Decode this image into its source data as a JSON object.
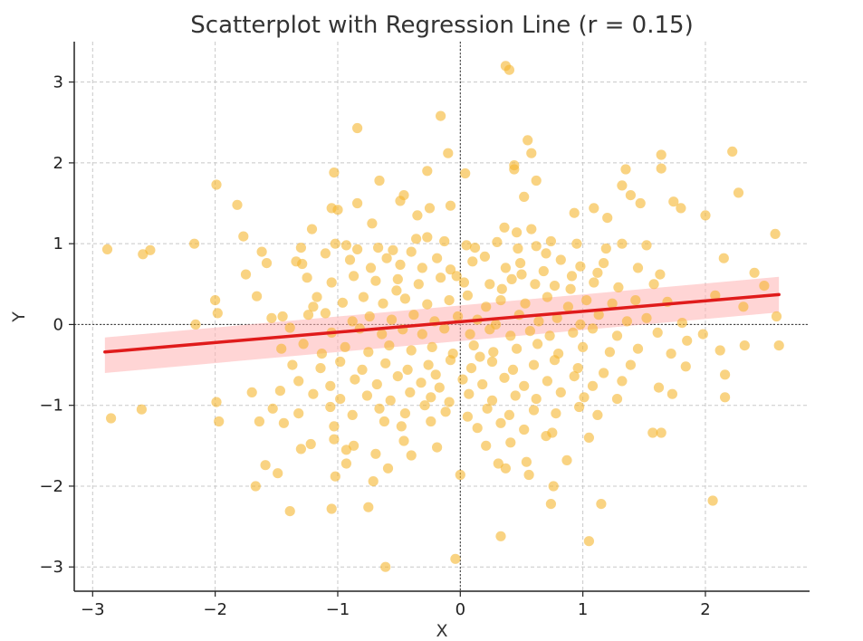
{
  "chart_data": {
    "type": "scatter",
    "title": "Scatterplot with Regression Line (r = 0.15)",
    "xlabel": "X",
    "ylabel": "Y",
    "xlim": [
      -3.15,
      2.85
    ],
    "ylim": [
      -3.3,
      3.5
    ],
    "xticks": [
      -3,
      -2,
      -1,
      0,
      1,
      2
    ],
    "yticks": [
      -3,
      -2,
      -1,
      0,
      1,
      2,
      3
    ],
    "xtick_labels": [
      "−3",
      "−2",
      "−1",
      "0",
      "1",
      "2"
    ],
    "ytick_labels": [
      "−3",
      "−2",
      "−1",
      "0",
      "1",
      "2",
      "3"
    ],
    "grid": true,
    "zero_lines": true,
    "point_color": "#f5b52e",
    "line_color": "#e01b1b",
    "band_color": "#ffb3b3",
    "regression": {
      "x": [
        -2.9,
        2.6
      ],
      "y": [
        -0.34,
        0.37
      ],
      "band_upper": [
        -0.16,
        0.59
      ],
      "band_lower": [
        -0.6,
        0.15
      ]
    },
    "points": [
      [
        0.37,
        3.2
      ],
      [
        0.4,
        3.15
      ],
      [
        -0.16,
        2.58
      ],
      [
        -0.84,
        2.43
      ],
      [
        -0.1,
        2.12
      ],
      [
        0.55,
        2.28
      ],
      [
        0.58,
        2.12
      ],
      [
        1.64,
        2.1
      ],
      [
        1.64,
        1.93
      ],
      [
        2.22,
        2.14
      ],
      [
        0.44,
        1.97
      ],
      [
        0.44,
        1.92
      ],
      [
        -0.27,
        1.9
      ],
      [
        0.04,
        1.87
      ],
      [
        -1.99,
        1.73
      ],
      [
        -1.03,
        1.88
      ],
      [
        1.35,
        1.92
      ],
      [
        1.32,
        1.72
      ],
      [
        2.27,
        1.63
      ],
      [
        -0.66,
        1.78
      ],
      [
        -0.46,
        1.6
      ],
      [
        -0.25,
        1.44
      ],
      [
        0.62,
        1.78
      ],
      [
        1.39,
        1.6
      ],
      [
        1.74,
        1.52
      ],
      [
        -1.82,
        1.48
      ],
      [
        -1.0,
        1.42
      ],
      [
        -0.84,
        1.5
      ],
      [
        -0.49,
        1.53
      ],
      [
        -0.08,
        1.47
      ],
      [
        0.52,
        1.58
      ],
      [
        1.09,
        1.44
      ],
      [
        1.47,
        1.5
      ],
      [
        1.8,
        1.44
      ],
      [
        2.0,
        1.35
      ],
      [
        -1.21,
        1.18
      ],
      [
        -1.05,
        1.44
      ],
      [
        -0.72,
        1.25
      ],
      [
        -0.35,
        1.35
      ],
      [
        0.36,
        1.2
      ],
      [
        0.46,
        1.14
      ],
      [
        0.58,
        1.18
      ],
      [
        0.93,
        1.38
      ],
      [
        1.2,
        1.32
      ],
      [
        -1.77,
        1.09
      ],
      [
        -2.17,
        1.0
      ],
      [
        -1.62,
        0.9
      ],
      [
        -2.88,
        0.93
      ],
      [
        -2.53,
        0.92
      ],
      [
        -2.59,
        0.87
      ],
      [
        -1.3,
        0.95
      ],
      [
        -1.1,
        0.88
      ],
      [
        -1.02,
        1.0
      ],
      [
        -0.93,
        0.98
      ],
      [
        -0.84,
        0.93
      ],
      [
        -0.67,
        0.95
      ],
      [
        -0.55,
        0.92
      ],
      [
        -0.36,
        1.06
      ],
      [
        -0.27,
        1.08
      ],
      [
        -0.13,
        1.03
      ],
      [
        0.05,
        0.98
      ],
      [
        0.12,
        0.95
      ],
      [
        0.3,
        1.02
      ],
      [
        0.47,
        0.94
      ],
      [
        0.62,
        0.97
      ],
      [
        0.74,
        1.03
      ],
      [
        0.95,
        1.0
      ],
      [
        1.19,
        0.94
      ],
      [
        1.32,
        1.0
      ],
      [
        1.52,
        0.98
      ],
      [
        2.57,
        1.12
      ],
      [
        -1.58,
        0.76
      ],
      [
        -1.34,
        0.78
      ],
      [
        -1.29,
        0.75
      ],
      [
        -0.9,
        0.8
      ],
      [
        -0.73,
        0.7
      ],
      [
        -0.6,
        0.82
      ],
      [
        -0.49,
        0.74
      ],
      [
        -0.31,
        0.7
      ],
      [
        -0.19,
        0.82
      ],
      [
        -0.08,
        0.68
      ],
      [
        0.1,
        0.78
      ],
      [
        0.2,
        0.84
      ],
      [
        0.37,
        0.7
      ],
      [
        0.49,
        0.76
      ],
      [
        0.68,
        0.66
      ],
      [
        0.82,
        0.8
      ],
      [
        0.98,
        0.72
      ],
      [
        1.17,
        0.76
      ],
      [
        1.45,
        0.7
      ],
      [
        1.63,
        0.62
      ],
      [
        2.15,
        0.82
      ],
      [
        2.4,
        0.64
      ],
      [
        -1.75,
        0.62
      ],
      [
        -1.25,
        0.58
      ],
      [
        -1.05,
        0.52
      ],
      [
        -0.87,
        0.6
      ],
      [
        -0.69,
        0.54
      ],
      [
        -0.51,
        0.56
      ],
      [
        -0.34,
        0.5
      ],
      [
        -0.16,
        0.58
      ],
      [
        0.03,
        0.52
      ],
      [
        0.24,
        0.5
      ],
      [
        0.42,
        0.56
      ],
      [
        0.61,
        0.5
      ],
      [
        0.77,
        0.48
      ],
      [
        0.91,
        0.6
      ],
      [
        1.09,
        0.52
      ],
      [
        1.29,
        0.46
      ],
      [
        1.58,
        0.5
      ],
      [
        2.48,
        0.48
      ],
      [
        -2.0,
        0.3
      ],
      [
        -1.66,
        0.35
      ],
      [
        -1.17,
        0.34
      ],
      [
        -1.2,
        0.22
      ],
      [
        -0.96,
        0.27
      ],
      [
        -0.79,
        0.34
      ],
      [
        -0.63,
        0.26
      ],
      [
        -0.45,
        0.32
      ],
      [
        -0.27,
        0.25
      ],
      [
        -0.09,
        0.3
      ],
      [
        0.06,
        0.36
      ],
      [
        0.21,
        0.22
      ],
      [
        0.33,
        0.3
      ],
      [
        0.53,
        0.26
      ],
      [
        0.71,
        0.34
      ],
      [
        0.88,
        0.22
      ],
      [
        1.03,
        0.3
      ],
      [
        1.24,
        0.26
      ],
      [
        1.43,
        0.3
      ],
      [
        1.69,
        0.28
      ],
      [
        2.08,
        0.36
      ],
      [
        2.31,
        0.22
      ],
      [
        2.58,
        0.1
      ],
      [
        -1.54,
        0.08
      ],
      [
        -1.24,
        0.12
      ],
      [
        -1.1,
        0.14
      ],
      [
        -0.88,
        0.04
      ],
      [
        -0.74,
        0.1
      ],
      [
        -0.56,
        0.06
      ],
      [
        -0.38,
        0.12
      ],
      [
        -0.21,
        0.04
      ],
      [
        -0.02,
        0.1
      ],
      [
        0.14,
        0.06
      ],
      [
        0.29,
        0.0
      ],
      [
        0.48,
        0.12
      ],
      [
        0.64,
        0.04
      ],
      [
        0.79,
        0.08
      ],
      [
        0.98,
        0.0
      ],
      [
        1.13,
        0.12
      ],
      [
        1.36,
        0.04
      ],
      [
        1.52,
        0.08
      ],
      [
        1.81,
        0.02
      ],
      [
        -2.16,
        0.0
      ],
      [
        -1.98,
        0.14
      ],
      [
        -1.39,
        -0.04
      ],
      [
        -1.05,
        -0.1
      ],
      [
        -0.82,
        -0.05
      ],
      [
        -0.64,
        -0.12
      ],
      [
        -0.47,
        -0.06
      ],
      [
        -0.31,
        -0.12
      ],
      [
        -0.13,
        -0.05
      ],
      [
        0.08,
        -0.12
      ],
      [
        0.24,
        -0.06
      ],
      [
        0.41,
        -0.14
      ],
      [
        0.57,
        -0.08
      ],
      [
        0.73,
        -0.14
      ],
      [
        0.92,
        -0.1
      ],
      [
        1.08,
        -0.05
      ],
      [
        1.28,
        -0.14
      ],
      [
        1.61,
        -0.1
      ],
      [
        1.98,
        -0.12
      ],
      [
        2.6,
        -0.26
      ],
      [
        -1.46,
        -0.3
      ],
      [
        -1.28,
        -0.24
      ],
      [
        -1.13,
        -0.36
      ],
      [
        -0.94,
        -0.28
      ],
      [
        -0.75,
        -0.34
      ],
      [
        -0.58,
        -0.26
      ],
      [
        -0.4,
        -0.32
      ],
      [
        -0.23,
        -0.28
      ],
      [
        -0.06,
        -0.36
      ],
      [
        0.11,
        -0.26
      ],
      [
        0.27,
        -0.34
      ],
      [
        0.46,
        -0.3
      ],
      [
        0.63,
        -0.24
      ],
      [
        0.8,
        -0.36
      ],
      [
        1.0,
        -0.28
      ],
      [
        1.22,
        -0.34
      ],
      [
        1.45,
        -0.3
      ],
      [
        1.72,
        -0.36
      ],
      [
        2.12,
        -0.32
      ],
      [
        2.32,
        -0.26
      ],
      [
        -1.37,
        -0.5
      ],
      [
        -1.14,
        -0.54
      ],
      [
        -0.98,
        -0.46
      ],
      [
        -0.8,
        -0.56
      ],
      [
        -0.61,
        -0.48
      ],
      [
        -0.43,
        -0.56
      ],
      [
        -0.26,
        -0.5
      ],
      [
        -0.08,
        -0.44
      ],
      [
        0.09,
        -0.54
      ],
      [
        0.26,
        -0.46
      ],
      [
        0.43,
        -0.56
      ],
      [
        0.6,
        -0.5
      ],
      [
        0.77,
        -0.44
      ],
      [
        0.96,
        -0.54
      ],
      [
        1.17,
        -0.6
      ],
      [
        1.39,
        -0.5
      ],
      [
        1.84,
        -0.52
      ],
      [
        2.16,
        -0.62
      ],
      [
        -1.32,
        -0.7
      ],
      [
        -1.06,
        -0.76
      ],
      [
        -0.86,
        -0.68
      ],
      [
        -0.68,
        -0.74
      ],
      [
        -0.51,
        -0.64
      ],
      [
        -0.32,
        -0.72
      ],
      [
        -0.17,
        -0.78
      ],
      [
        0.02,
        -0.68
      ],
      [
        0.18,
        -0.74
      ],
      [
        0.36,
        -0.66
      ],
      [
        0.52,
        -0.76
      ],
      [
        0.71,
        -0.7
      ],
      [
        0.93,
        -0.64
      ],
      [
        1.08,
        -0.76
      ],
      [
        1.32,
        -0.7
      ],
      [
        1.62,
        -0.78
      ],
      [
        -1.7,
        -0.84
      ],
      [
        -1.47,
        -0.82
      ],
      [
        -1.2,
        -0.86
      ],
      [
        -0.98,
        -0.92
      ],
      [
        -0.76,
        -0.88
      ],
      [
        -0.57,
        -0.94
      ],
      [
        -0.41,
        -0.84
      ],
      [
        -0.24,
        -0.9
      ],
      [
        -0.09,
        -0.96
      ],
      [
        0.07,
        -0.86
      ],
      [
        0.26,
        -0.94
      ],
      [
        0.45,
        -0.88
      ],
      [
        0.62,
        -0.92
      ],
      [
        0.82,
        -0.84
      ],
      [
        1.01,
        -0.9
      ],
      [
        1.28,
        -0.92
      ],
      [
        1.73,
        -0.86
      ],
      [
        2.16,
        -0.9
      ],
      [
        -1.99,
        -0.96
      ],
      [
        -1.53,
        -1.04
      ],
      [
        -1.32,
        -1.1
      ],
      [
        -1.06,
        -1.02
      ],
      [
        -0.88,
        -1.12
      ],
      [
        -0.66,
        -1.04
      ],
      [
        -0.45,
        -1.1
      ],
      [
        -0.29,
        -1.0
      ],
      [
        -0.12,
        -1.08
      ],
      [
        0.06,
        -1.14
      ],
      [
        0.22,
        -1.04
      ],
      [
        0.4,
        -1.12
      ],
      [
        0.6,
        -1.06
      ],
      [
        0.78,
        -1.1
      ],
      [
        0.97,
        -1.02
      ],
      [
        1.12,
        -1.12
      ],
      [
        -2.85,
        -1.16
      ],
      [
        -2.6,
        -1.05
      ],
      [
        -1.97,
        -1.2
      ],
      [
        -1.64,
        -1.2
      ],
      [
        -1.44,
        -1.22
      ],
      [
        -1.03,
        -1.26
      ],
      [
        -0.62,
        -1.2
      ],
      [
        -0.48,
        -1.26
      ],
      [
        -0.24,
        -1.2
      ],
      [
        0.14,
        -1.28
      ],
      [
        0.33,
        -1.22
      ],
      [
        0.52,
        -1.3
      ],
      [
        1.05,
        -1.4
      ],
      [
        1.57,
        -1.34
      ],
      [
        1.64,
        -1.34
      ],
      [
        -1.3,
        -1.54
      ],
      [
        -1.22,
        -1.48
      ],
      [
        -1.03,
        -1.42
      ],
      [
        -0.87,
        -1.5
      ],
      [
        -0.69,
        -1.6
      ],
      [
        -0.46,
        -1.44
      ],
      [
        -0.19,
        -1.52
      ],
      [
        0.21,
        -1.5
      ],
      [
        0.41,
        -1.46
      ],
      [
        0.31,
        -1.72
      ],
      [
        0.37,
        -1.78
      ],
      [
        0.7,
        -1.38
      ],
      [
        0.75,
        -1.34
      ],
      [
        -1.49,
        -1.84
      ],
      [
        -1.59,
        -1.74
      ],
      [
        -1.02,
        -1.88
      ],
      [
        -0.93,
        -1.72
      ],
      [
        -0.71,
        -1.94
      ],
      [
        -0.59,
        -1.78
      ],
      [
        -0.4,
        -1.62
      ],
      [
        0.0,
        -1.86
      ],
      [
        0.54,
        -1.7
      ],
      [
        0.56,
        -1.86
      ],
      [
        0.76,
        -2.0
      ],
      [
        -1.67,
        -2.0
      ],
      [
        -0.75,
        -2.26
      ],
      [
        0.74,
        -2.22
      ],
      [
        1.15,
        -2.22
      ],
      [
        2.06,
        -2.18
      ],
      [
        -1.39,
        -2.31
      ],
      [
        -1.05,
        -2.28
      ],
      [
        0.33,
        -2.62
      ],
      [
        1.05,
        -2.68
      ],
      [
        -0.04,
        -2.9
      ],
      [
        -0.61,
        -3.0
      ],
      [
        -0.93,
        -1.55
      ],
      [
        0.87,
        -1.68
      ],
      [
        -0.2,
        -0.62
      ],
      [
        0.16,
        -0.4
      ],
      [
        -0.52,
        0.42
      ],
      [
        0.34,
        0.44
      ],
      [
        0.5,
        0.62
      ],
      [
        -0.03,
        0.6
      ],
      [
        0.7,
        0.88
      ],
      [
        -0.4,
        0.9
      ],
      [
        0.9,
        0.44
      ],
      [
        1.12,
        0.64
      ],
      [
        -1.45,
        0.1
      ],
      [
        1.85,
        -0.2
      ]
    ]
  }
}
